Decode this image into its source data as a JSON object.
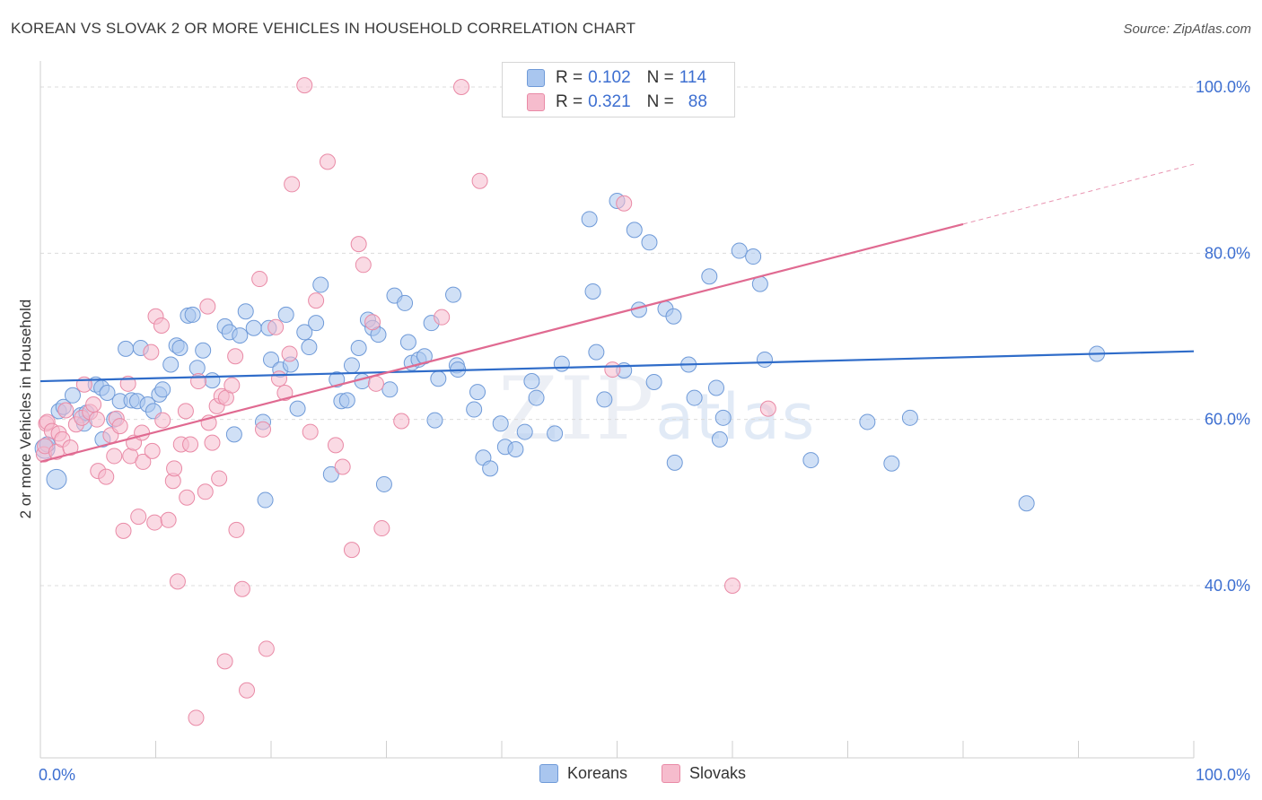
{
  "title": "KOREAN VS SLOVAK 2 OR MORE VEHICLES IN HOUSEHOLD CORRELATION CHART",
  "source": "Source: ZipAtlas.com",
  "watermark": {
    "zip": "ZIP",
    "atlas": "atlas"
  },
  "legend": {
    "rows": [
      {
        "r_label": "R =",
        "r_value": "0.102",
        "n_label": "N =",
        "n_value": "114"
      },
      {
        "r_label": "R =",
        "r_value": "0.321",
        "n_label": "N =",
        "n_value": "88"
      }
    ]
  },
  "bottom_legend": {
    "koreans": "Koreans",
    "slovaks": "Slovaks"
  },
  "colors": {
    "korean_fill": "#a9c6ef",
    "korean_stroke": "#6f9ad8",
    "korean_line": "#2f6cc9",
    "slovak_fill": "#f6bccd",
    "slovak_stroke": "#e98aa6",
    "slovak_line": "#e06a91",
    "grid": "#dcdcdc",
    "accent": "#3d6fd1"
  },
  "chart_data": {
    "type": "scatter",
    "title": "KOREAN VS SLOVAK 2 OR MORE VEHICLES IN HOUSEHOLD CORRELATION CHART",
    "xlabel": "",
    "ylabel": "2 or more Vehicles in Household",
    "xlim": [
      0,
      100
    ],
    "ylim": [
      20,
      102
    ],
    "x_tick_labels": [
      "0.0%",
      "100.0%"
    ],
    "y_ticks": [
      40,
      60,
      80,
      100
    ],
    "y_tick_labels": [
      "40.0%",
      "60.0%",
      "80.0%",
      "100.0%"
    ],
    "grid": true,
    "legend_position": "top-center",
    "series": [
      {
        "name": "Koreans",
        "r": 0.102,
        "n": 114,
        "trend": {
          "x": [
            0,
            100
          ],
          "y": [
            64.6,
            68.2
          ]
        },
        "points": [
          [
            0.4,
            56.5
          ],
          [
            0.6,
            57
          ],
          [
            1.4,
            52.8
          ],
          [
            1.6,
            61
          ],
          [
            2,
            61.5
          ],
          [
            2.8,
            62.9
          ],
          [
            3.5,
            60.5
          ],
          [
            3.8,
            59.5
          ],
          [
            4,
            60.8
          ],
          [
            4.8,
            64.2
          ],
          [
            5.3,
            63.8
          ],
          [
            5.4,
            57.6
          ],
          [
            5.8,
            63.2
          ],
          [
            6.4,
            60
          ],
          [
            6.9,
            62.2
          ],
          [
            7.4,
            68.5
          ],
          [
            7.9,
            62.3
          ],
          [
            8.4,
            62.2
          ],
          [
            8.7,
            68.6
          ],
          [
            9.3,
            61.8
          ],
          [
            9.8,
            61
          ],
          [
            10.3,
            63
          ],
          [
            10.6,
            63.6
          ],
          [
            11.3,
            66.6
          ],
          [
            11.8,
            68.9
          ],
          [
            12.1,
            68.6
          ],
          [
            12.8,
            72.5
          ],
          [
            13.2,
            72.6
          ],
          [
            13.6,
            66.2
          ],
          [
            14.1,
            68.3
          ],
          [
            14.9,
            64.7
          ],
          [
            16,
            71.2
          ],
          [
            16.4,
            70.5
          ],
          [
            16.8,
            58.2
          ],
          [
            17.3,
            70.1
          ],
          [
            17.8,
            73
          ],
          [
            18.5,
            71
          ],
          [
            19.3,
            59.7
          ],
          [
            19.5,
            50.3
          ],
          [
            19.8,
            71
          ],
          [
            20,
            67.2
          ],
          [
            20.8,
            66
          ],
          [
            21.3,
            72.6
          ],
          [
            21.7,
            66.6
          ],
          [
            22.3,
            61.3
          ],
          [
            22.9,
            70.5
          ],
          [
            23.3,
            68.7
          ],
          [
            23.9,
            71.6
          ],
          [
            24.3,
            76.2
          ],
          [
            25.2,
            53.4
          ],
          [
            25.7,
            64.8
          ],
          [
            26.1,
            62.2
          ],
          [
            26.6,
            62.3
          ],
          [
            27,
            66.5
          ],
          [
            27.6,
            68.6
          ],
          [
            27.9,
            64.6
          ],
          [
            28.4,
            72
          ],
          [
            28.8,
            71
          ],
          [
            29.3,
            70.2
          ],
          [
            29.8,
            52.2
          ],
          [
            30.3,
            63.6
          ],
          [
            30.7,
            74.9
          ],
          [
            31.6,
            74
          ],
          [
            31.9,
            69.3
          ],
          [
            32.2,
            66.8
          ],
          [
            32.8,
            67.2
          ],
          [
            33.3,
            67.6
          ],
          [
            33.9,
            71.6
          ],
          [
            34.2,
            59.9
          ],
          [
            34.5,
            64.9
          ],
          [
            35.8,
            75
          ],
          [
            36.1,
            66.5
          ],
          [
            36.2,
            66
          ],
          [
            37.6,
            61.2
          ],
          [
            37.9,
            63.3
          ],
          [
            38.4,
            55.4
          ],
          [
            39,
            54.1
          ],
          [
            39.9,
            59.5
          ],
          [
            40.3,
            56.7
          ],
          [
            41.2,
            56.4
          ],
          [
            42,
            58.5
          ],
          [
            42.6,
            64.6
          ],
          [
            43,
            62.6
          ],
          [
            44.6,
            58.3
          ],
          [
            45.2,
            66.7
          ],
          [
            47.6,
            84.1
          ],
          [
            47.9,
            75.4
          ],
          [
            48.2,
            68.1
          ],
          [
            48.9,
            62.4
          ],
          [
            50,
            86.3
          ],
          [
            50.6,
            65.9
          ],
          [
            51.5,
            82.8
          ],
          [
            51.9,
            73.2
          ],
          [
            52.8,
            81.3
          ],
          [
            53.2,
            64.5
          ],
          [
            54.2,
            73.3
          ],
          [
            54.9,
            72.4
          ],
          [
            55,
            54.8
          ],
          [
            56.2,
            66.6
          ],
          [
            56.7,
            62.6
          ],
          [
            58,
            77.2
          ],
          [
            58.6,
            63.8
          ],
          [
            58.9,
            57.6
          ],
          [
            59.2,
            60.2
          ],
          [
            60.6,
            80.3
          ],
          [
            61.8,
            79.6
          ],
          [
            62.4,
            76.3
          ],
          [
            62.8,
            67.2
          ],
          [
            66.8,
            55.1
          ],
          [
            71.7,
            59.7
          ],
          [
            73.8,
            54.7
          ],
          [
            75.4,
            60.2
          ],
          [
            85.5,
            49.9
          ],
          [
            91.6,
            67.9
          ]
        ]
      },
      {
        "name": "Slovaks",
        "r": 0.321,
        "n": 88,
        "trend": {
          "x": [
            0,
            80
          ],
          "y": [
            54.9,
            83.5
          ]
        },
        "trend_dashed": {
          "x": [
            80,
            100
          ],
          "y": [
            83.5,
            90.7
          ]
        },
        "points": [
          [
            0.3,
            55.8
          ],
          [
            0.4,
            56.8
          ],
          [
            0.5,
            59.5
          ],
          [
            0.6,
            59.7
          ],
          [
            1,
            58.6
          ],
          [
            1.4,
            56.1
          ],
          [
            1.6,
            58.3
          ],
          [
            1.9,
            57.6
          ],
          [
            2.2,
            61.1
          ],
          [
            2.6,
            56.6
          ],
          [
            3.1,
            59.4
          ],
          [
            3.6,
            60.2
          ],
          [
            3.8,
            64.2
          ],
          [
            4.3,
            60.9
          ],
          [
            4.6,
            61.8
          ],
          [
            4.9,
            60
          ],
          [
            5,
            53.8
          ],
          [
            5.7,
            53.1
          ],
          [
            6.1,
            58.1
          ],
          [
            6.4,
            55.6
          ],
          [
            6.6,
            60.1
          ],
          [
            6.9,
            59.2
          ],
          [
            7.2,
            46.6
          ],
          [
            7.6,
            64.3
          ],
          [
            7.8,
            55.6
          ],
          [
            8.1,
            57.2
          ],
          [
            8.5,
            48.3
          ],
          [
            8.8,
            58.4
          ],
          [
            8.9,
            54.9
          ],
          [
            9.6,
            68.1
          ],
          [
            9.7,
            56.2
          ],
          [
            9.9,
            47.6
          ],
          [
            10,
            72.4
          ],
          [
            10.5,
            71.3
          ],
          [
            10.6,
            59.9
          ],
          [
            11.1,
            47.9
          ],
          [
            11.5,
            52.6
          ],
          [
            11.6,
            54.1
          ],
          [
            11.9,
            40.5
          ],
          [
            12.2,
            57
          ],
          [
            12.6,
            61
          ],
          [
            12.7,
            50.6
          ],
          [
            13,
            57
          ],
          [
            13.5,
            24.1
          ],
          [
            13.7,
            64.6
          ],
          [
            14.3,
            51.3
          ],
          [
            14.5,
            73.6
          ],
          [
            14.6,
            59.6
          ],
          [
            14.9,
            57.2
          ],
          [
            15.3,
            61.6
          ],
          [
            15.5,
            52.9
          ],
          [
            15.7,
            62.8
          ],
          [
            16.1,
            62.6
          ],
          [
            16,
            30.9
          ],
          [
            16.6,
            64.1
          ],
          [
            16.9,
            67.6
          ],
          [
            17,
            46.7
          ],
          [
            17.5,
            39.6
          ],
          [
            17.9,
            27.4
          ],
          [
            19,
            76.9
          ],
          [
            19.3,
            58.8
          ],
          [
            19.6,
            32.4
          ],
          [
            20.4,
            71.1
          ],
          [
            20.7,
            64.9
          ],
          [
            21.2,
            63.2
          ],
          [
            21.6,
            67.9
          ],
          [
            21.8,
            88.3
          ],
          [
            22.9,
            100.2
          ],
          [
            23.4,
            58.5
          ],
          [
            23.9,
            74.3
          ],
          [
            24.9,
            91
          ],
          [
            25.6,
            56.9
          ],
          [
            26.2,
            54.3
          ],
          [
            27,
            44.3
          ],
          [
            27.6,
            81.1
          ],
          [
            28,
            78.6
          ],
          [
            28.8,
            71.7
          ],
          [
            29.1,
            64.3
          ],
          [
            29.6,
            46.9
          ],
          [
            31.3,
            59.8
          ],
          [
            34.8,
            72.3
          ],
          [
            36.5,
            100
          ],
          [
            38.1,
            88.7
          ],
          [
            49.6,
            66
          ],
          [
            50.6,
            86
          ],
          [
            60,
            40
          ],
          [
            63.1,
            61.3
          ]
        ]
      }
    ]
  }
}
